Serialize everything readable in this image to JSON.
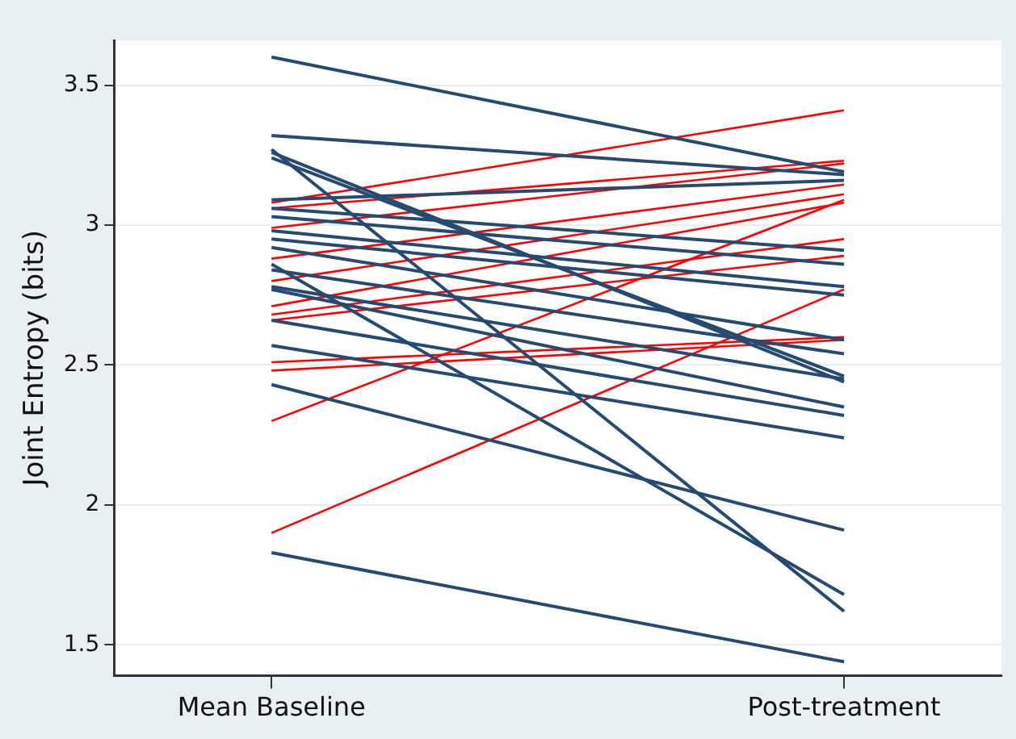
{
  "chart_data": {
    "type": "line",
    "ylabel": "Joint Entropy (bits)",
    "categories": [
      "Mean Baseline",
      "Post-treatment"
    ],
    "ylim": [
      1.39,
      3.66
    ],
    "yticks": [
      1.5,
      2,
      2.5,
      3,
      3.5
    ],
    "grid": "y",
    "legend": false,
    "marker": "none",
    "line_style": "solid",
    "series": [
      {
        "color": "#264a70",
        "values": [
          3.6,
          3.19
        ]
      },
      {
        "color": "#264a70",
        "values": [
          3.32,
          3.18
        ]
      },
      {
        "color": "#264a70",
        "values": [
          3.27,
          1.62
        ]
      },
      {
        "color": "#264a70",
        "values": [
          3.26,
          2.44
        ]
      },
      {
        "color": "#264a70",
        "values": [
          3.24,
          2.46
        ]
      },
      {
        "color": "#264a70",
        "values": [
          3.09,
          3.16
        ]
      },
      {
        "color": "#264a70",
        "values": [
          3.06,
          2.91
        ]
      },
      {
        "color": "#264a70",
        "values": [
          3.03,
          2.86
        ]
      },
      {
        "color": "#264a70",
        "values": [
          2.98,
          2.78
        ]
      },
      {
        "color": "#264a70",
        "values": [
          2.95,
          2.75
        ]
      },
      {
        "color": "#264a70",
        "values": [
          2.92,
          2.59
        ]
      },
      {
        "color": "#264a70",
        "values": [
          2.86,
          1.68
        ]
      },
      {
        "color": "#264a70",
        "values": [
          2.84,
          2.54
        ]
      },
      {
        "color": "#264a70",
        "values": [
          2.78,
          2.45
        ]
      },
      {
        "color": "#264a70",
        "values": [
          2.77,
          2.35
        ]
      },
      {
        "color": "#264a70",
        "values": [
          2.66,
          2.32
        ]
      },
      {
        "color": "#264a70",
        "values": [
          2.57,
          2.24
        ]
      },
      {
        "color": "#264a70",
        "values": [
          2.43,
          1.91
        ]
      },
      {
        "color": "#264a70",
        "values": [
          1.83,
          1.44
        ]
      },
      {
        "color": "#ff0000",
        "values": [
          3.08,
          3.41
        ]
      },
      {
        "color": "#ff0000",
        "values": [
          3.06,
          3.23
        ]
      },
      {
        "color": "#ff0000",
        "values": [
          2.99,
          3.22
        ]
      },
      {
        "color": "#ff0000",
        "values": [
          2.88,
          3.145
        ]
      },
      {
        "color": "#ff0000",
        "values": [
          2.8,
          3.11
        ]
      },
      {
        "color": "#ff0000",
        "values": [
          2.3,
          3.09
        ]
      },
      {
        "color": "#ff0000",
        "values": [
          2.71,
          3.08
        ]
      },
      {
        "color": "#ff0000",
        "values": [
          2.68,
          2.95
        ]
      },
      {
        "color": "#ff0000",
        "values": [
          2.66,
          2.89
        ]
      },
      {
        "color": "#ff0000",
        "values": [
          1.9,
          2.77
        ]
      },
      {
        "color": "#ff0000",
        "values": [
          2.51,
          2.6
        ]
      },
      {
        "color": "#ff0000",
        "values": [
          2.48,
          2.59
        ]
      }
    ]
  }
}
